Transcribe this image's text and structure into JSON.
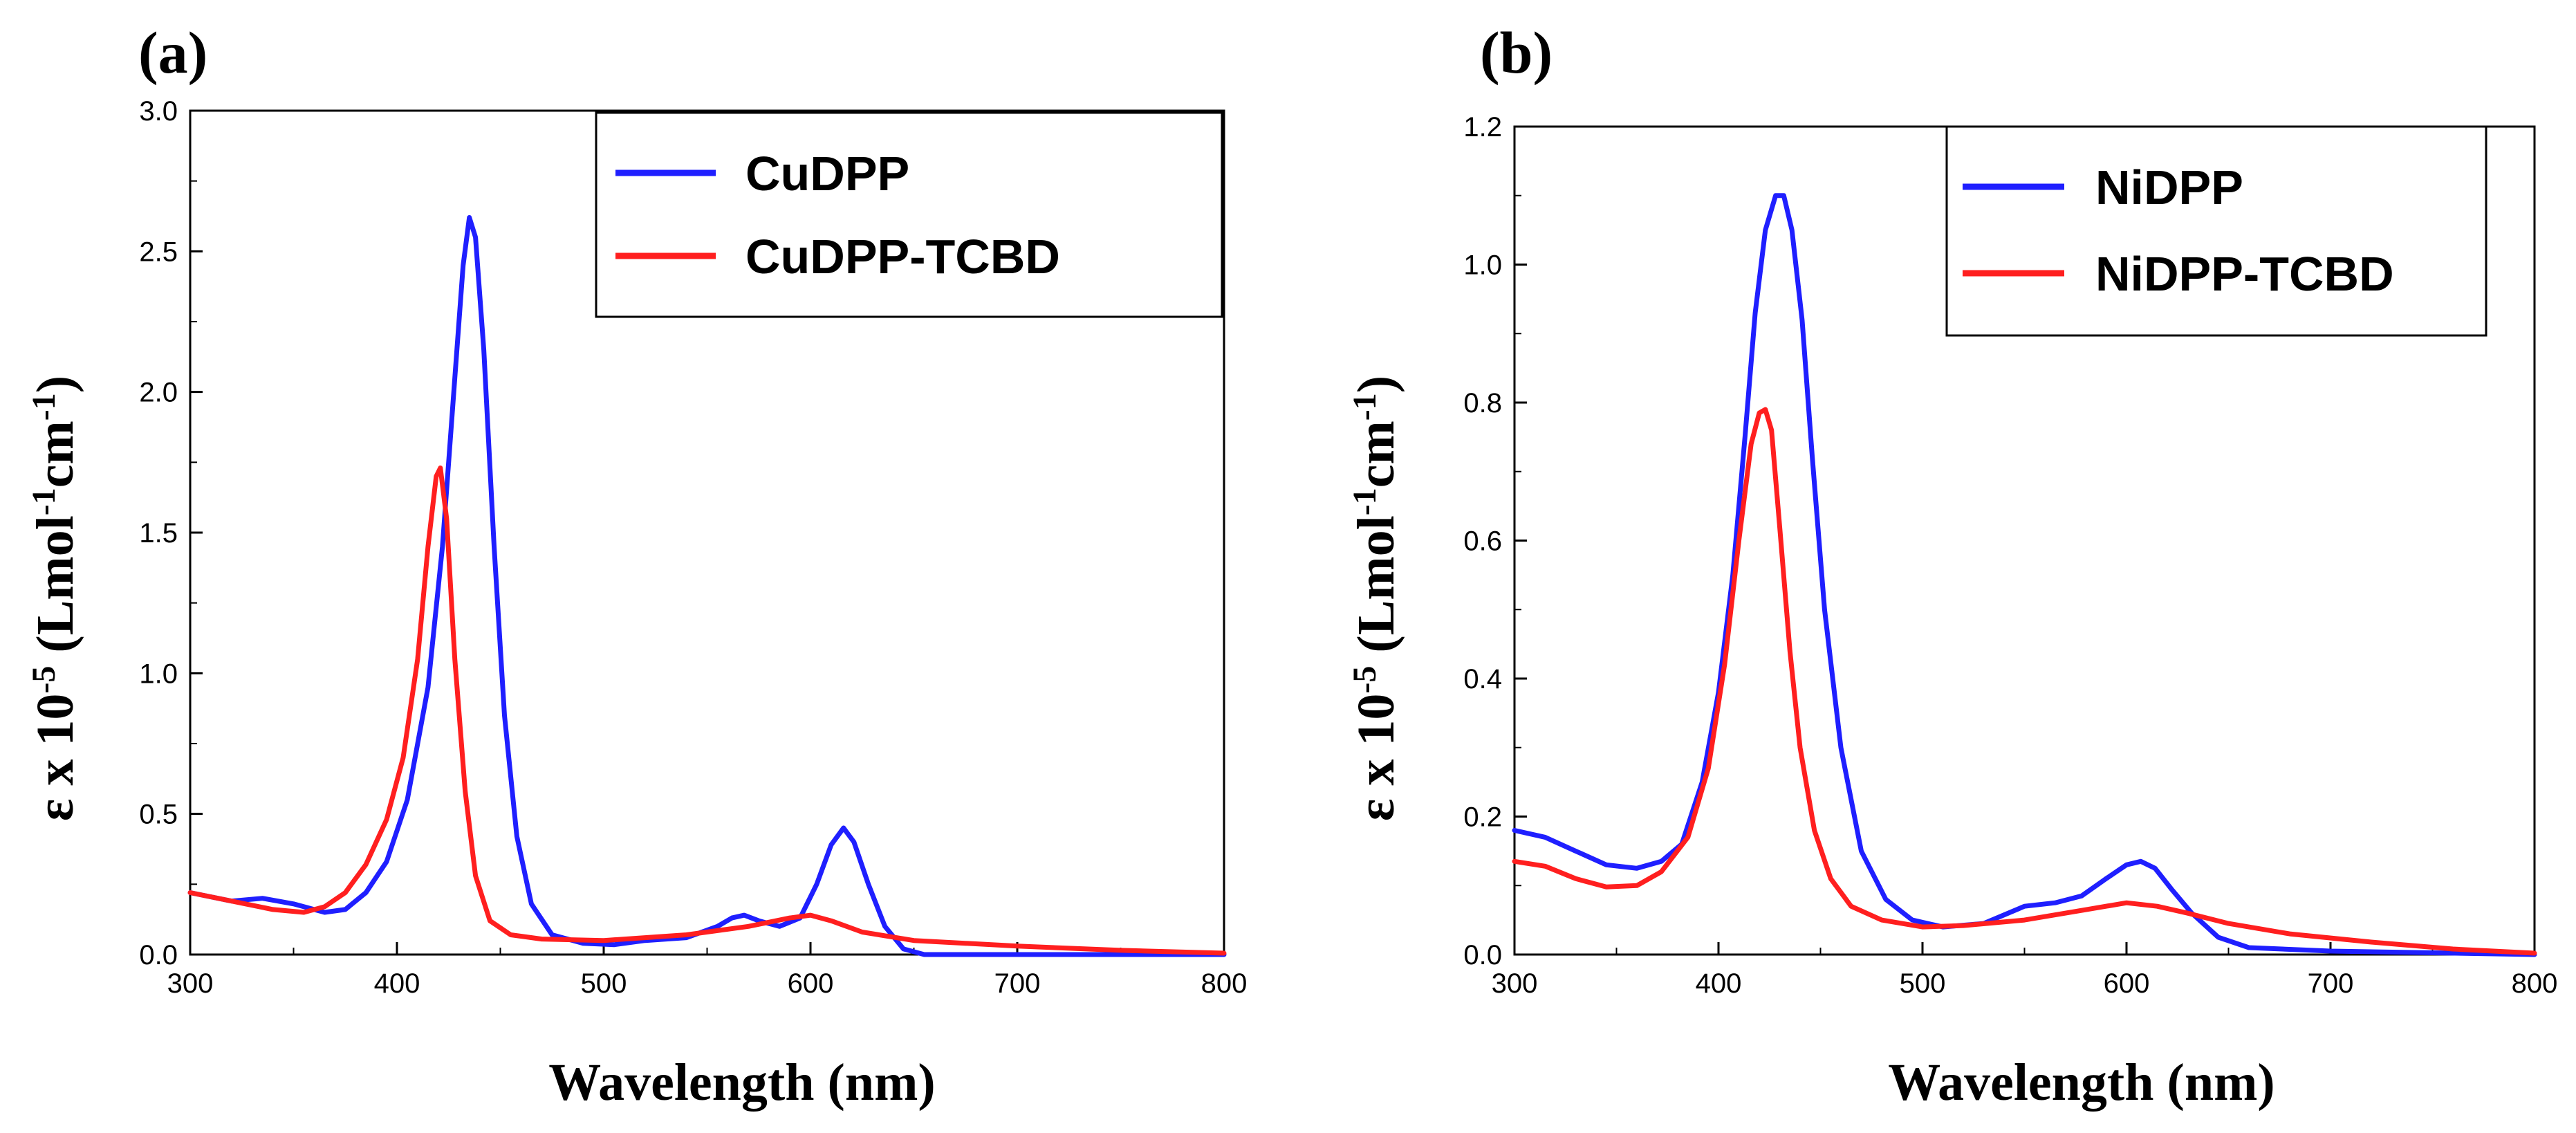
{
  "chart_data": [
    {
      "type": "line",
      "panel_label": "(a)",
      "xlabel": "Wavelength (nm)",
      "ylabel": {
        "base": "ε x 10",
        "exp": "-5",
        "unit_open": " (Lmol",
        "unit_exp1": "-1",
        "unit_mid": "cm",
        "unit_exp2": "-1",
        "unit_close": ")"
      },
      "xlim": [
        300,
        800
      ],
      "ylim": [
        0,
        3.0
      ],
      "x_ticks": [
        "300",
        "400",
        "500",
        "600",
        "700",
        "800"
      ],
      "y_ticks": [
        "0.0",
        "0.5",
        "1.0",
        "1.5",
        "2.0",
        "2.5",
        "3.0"
      ],
      "legend_position": "top-right",
      "series": [
        {
          "name": "CuDPP",
          "color": "#1f1fff",
          "points": [
            [
              300,
              0.22
            ],
            [
              320,
              0.19
            ],
            [
              335,
              0.2
            ],
            [
              350,
              0.18
            ],
            [
              365,
              0.15
            ],
            [
              375,
              0.16
            ],
            [
              385,
              0.22
            ],
            [
              395,
              0.33
            ],
            [
              405,
              0.55
            ],
            [
              415,
              0.95
            ],
            [
              422,
              1.45
            ],
            [
              428,
              2.05
            ],
            [
              432,
              2.45
            ],
            [
              435,
              2.62
            ],
            [
              438,
              2.55
            ],
            [
              442,
              2.15
            ],
            [
              447,
              1.45
            ],
            [
              452,
              0.85
            ],
            [
              458,
              0.42
            ],
            [
              465,
              0.18
            ],
            [
              475,
              0.07
            ],
            [
              490,
              0.04
            ],
            [
              505,
              0.035
            ],
            [
              520,
              0.05
            ],
            [
              540,
              0.06
            ],
            [
              555,
              0.1
            ],
            [
              562,
              0.13
            ],
            [
              568,
              0.14
            ],
            [
              575,
              0.12
            ],
            [
              585,
              0.1
            ],
            [
              595,
              0.13
            ],
            [
              603,
              0.25
            ],
            [
              610,
              0.39
            ],
            [
              616,
              0.45
            ],
            [
              621,
              0.4
            ],
            [
              628,
              0.25
            ],
            [
              636,
              0.1
            ],
            [
              645,
              0.02
            ],
            [
              655,
              0.0
            ],
            [
              700,
              0.0
            ],
            [
              800,
              0.0
            ]
          ]
        },
        {
          "name": "CuDPP-TCBD",
          "color": "#ff1f1f",
          "points": [
            [
              300,
              0.22
            ],
            [
              320,
              0.19
            ],
            [
              340,
              0.16
            ],
            [
              355,
              0.15
            ],
            [
              365,
              0.17
            ],
            [
              375,
              0.22
            ],
            [
              385,
              0.32
            ],
            [
              395,
              0.48
            ],
            [
              403,
              0.7
            ],
            [
              410,
              1.05
            ],
            [
              415,
              1.45
            ],
            [
              419,
              1.7
            ],
            [
              421,
              1.73
            ],
            [
              424,
              1.55
            ],
            [
              428,
              1.05
            ],
            [
              433,
              0.58
            ],
            [
              438,
              0.28
            ],
            [
              445,
              0.12
            ],
            [
              455,
              0.07
            ],
            [
              470,
              0.055
            ],
            [
              500,
              0.05
            ],
            [
              540,
              0.07
            ],
            [
              570,
              0.1
            ],
            [
              590,
              0.13
            ],
            [
              600,
              0.14
            ],
            [
              610,
              0.12
            ],
            [
              625,
              0.08
            ],
            [
              650,
              0.05
            ],
            [
              700,
              0.03
            ],
            [
              750,
              0.015
            ],
            [
              800,
              0.005
            ]
          ]
        }
      ]
    },
    {
      "type": "line",
      "panel_label": "(b)",
      "xlabel": "Wavelength (nm)",
      "ylabel": {
        "base": "ε x 10",
        "exp": "-5",
        "unit_open": " (Lmol",
        "unit_exp1": "-1",
        "unit_mid": "cm",
        "unit_exp2": "-1",
        "unit_close": ")"
      },
      "xlim": [
        300,
        800
      ],
      "ylim": [
        0,
        1.2
      ],
      "x_ticks": [
        "300",
        "400",
        "500",
        "600",
        "700",
        "800"
      ],
      "y_ticks": [
        "0.0",
        "0.2",
        "0.4",
        "0.6",
        "0.8",
        "1.0",
        "1.2"
      ],
      "legend_position": "top-right",
      "series": [
        {
          "name": "NiDPP",
          "color": "#1f1fff",
          "points": [
            [
              300,
              0.18
            ],
            [
              315,
              0.17
            ],
            [
              330,
              0.15
            ],
            [
              345,
              0.13
            ],
            [
              360,
              0.125
            ],
            [
              372,
              0.135
            ],
            [
              382,
              0.16
            ],
            [
              392,
              0.25
            ],
            [
              400,
              0.38
            ],
            [
              407,
              0.55
            ],
            [
              413,
              0.75
            ],
            [
              418,
              0.93
            ],
            [
              423,
              1.05
            ],
            [
              428,
              1.1
            ],
            [
              432,
              1.1
            ],
            [
              436,
              1.05
            ],
            [
              441,
              0.92
            ],
            [
              446,
              0.72
            ],
            [
              452,
              0.5
            ],
            [
              460,
              0.3
            ],
            [
              470,
              0.15
            ],
            [
              482,
              0.08
            ],
            [
              495,
              0.05
            ],
            [
              510,
              0.04
            ],
            [
              530,
              0.045
            ],
            [
              550,
              0.07
            ],
            [
              565,
              0.075
            ],
            [
              578,
              0.085
            ],
            [
              590,
              0.11
            ],
            [
              600,
              0.13
            ],
            [
              607,
              0.135
            ],
            [
              614,
              0.125
            ],
            [
              622,
              0.095
            ],
            [
              632,
              0.06
            ],
            [
              645,
              0.025
            ],
            [
              660,
              0.01
            ],
            [
              700,
              0.005
            ],
            [
              800,
              0.0
            ]
          ]
        },
        {
          "name": "NiDPP-TCBD",
          "color": "#ff1f1f",
          "points": [
            [
              300,
              0.135
            ],
            [
              315,
              0.128
            ],
            [
              330,
              0.11
            ],
            [
              345,
              0.098
            ],
            [
              360,
              0.1
            ],
            [
              372,
              0.12
            ],
            [
              385,
              0.17
            ],
            [
              395,
              0.27
            ],
            [
              403,
              0.42
            ],
            [
              410,
              0.6
            ],
            [
              416,
              0.74
            ],
            [
              420,
              0.785
            ],
            [
              423,
              0.79
            ],
            [
              426,
              0.76
            ],
            [
              430,
              0.62
            ],
            [
              435,
              0.44
            ],
            [
              440,
              0.3
            ],
            [
              447,
              0.18
            ],
            [
              455,
              0.11
            ],
            [
              465,
              0.07
            ],
            [
              480,
              0.05
            ],
            [
              500,
              0.04
            ],
            [
              520,
              0.042
            ],
            [
              550,
              0.05
            ],
            [
              580,
              0.065
            ],
            [
              600,
              0.075
            ],
            [
              615,
              0.07
            ],
            [
              630,
              0.06
            ],
            [
              650,
              0.045
            ],
            [
              680,
              0.03
            ],
            [
              720,
              0.018
            ],
            [
              760,
              0.008
            ],
            [
              800,
              0.002
            ]
          ]
        }
      ]
    }
  ]
}
